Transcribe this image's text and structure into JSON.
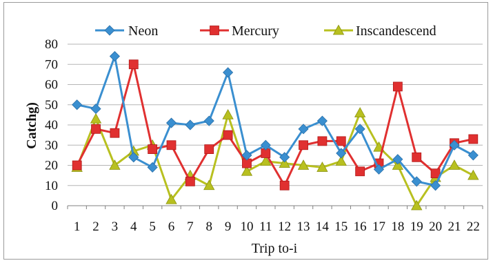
{
  "chart_data": {
    "type": "line",
    "title": "",
    "xlabel": "Trip to-i",
    "ylabel": "Catchg)",
    "x": [
      1,
      2,
      3,
      4,
      5,
      6,
      7,
      8,
      9,
      10,
      11,
      12,
      13,
      14,
      15,
      16,
      17,
      18,
      19,
      20,
      21,
      22
    ],
    "ylim": [
      0,
      80
    ],
    "yticks": [
      0,
      10,
      20,
      30,
      40,
      50,
      60,
      70,
      80
    ],
    "grid": "horizontal",
    "legend_position": "top",
    "series": [
      {
        "name": "Neon",
        "color": "#3a8fd0",
        "marker": "diamond",
        "values": [
          50,
          48,
          74,
          24,
          19,
          41,
          40,
          42,
          66,
          25,
          30,
          24,
          38,
          42,
          26,
          38,
          18,
          23,
          12,
          10,
          30,
          25
        ]
      },
      {
        "name": "Mercury",
        "color": "#e03030",
        "marker": "square",
        "values": [
          20,
          38,
          36,
          70,
          28,
          30,
          12,
          28,
          35,
          21,
          26,
          10,
          30,
          32,
          32,
          17,
          21,
          59,
          24,
          16,
          31,
          33
        ]
      },
      {
        "name": "Inscandescend",
        "color": "#b8c020",
        "marker": "triangle",
        "values": [
          19,
          43,
          20,
          27,
          30,
          3,
          15,
          10,
          45,
          17,
          22,
          21,
          20,
          19,
          22,
          46,
          29,
          20,
          0,
          14,
          20,
          15
        ]
      }
    ]
  }
}
